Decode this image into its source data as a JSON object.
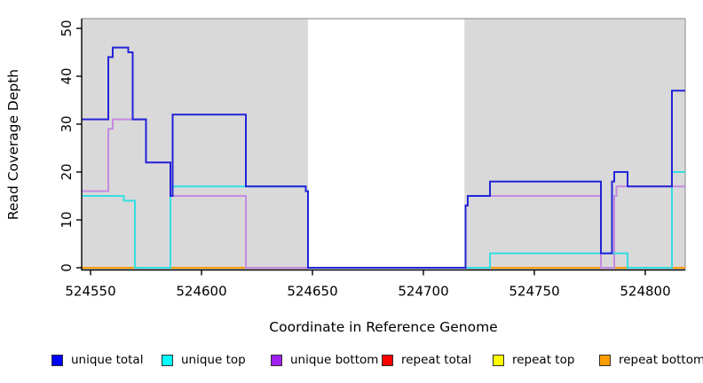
{
  "chart_data": {
    "type": "line",
    "step_style": "step-after",
    "title": "",
    "xlabel": "Coordinate in Reference Genome",
    "ylabel": "Read Coverage Depth",
    "xlim": [
      524546,
      524818
    ],
    "ylim": [
      0,
      52
    ],
    "x_ticks": [
      524550,
      524600,
      524650,
      524700,
      524750,
      524800
    ],
    "y_ticks": [
      0,
      10,
      20,
      30,
      40,
      50
    ],
    "grid": false,
    "legend_position": "bottom",
    "background": {
      "panel_color": "#d9d9d9",
      "gap_color": "#ffffff",
      "covered_regions": [
        [
          524546,
          524648
        ],
        [
          524718.5,
          524818
        ]
      ],
      "uncovered_gap_region": [
        524648,
        524718.5
      ],
      "border_color": "#999999",
      "axis_color": "#000000"
    },
    "series": [
      {
        "name": "unique total",
        "legend_color": "#0000ff",
        "line_color": "#2323d8",
        "points": [
          [
            524546,
            31
          ],
          [
            524558,
            44
          ],
          [
            524560,
            46
          ],
          [
            524567,
            45
          ],
          [
            524569,
            31
          ],
          [
            524575,
            22
          ],
          [
            524586,
            15
          ],
          [
            524587,
            32
          ],
          [
            524620,
            17
          ],
          [
            524647,
            16
          ],
          [
            524648,
            0
          ],
          [
            524719,
            13
          ],
          [
            524720,
            15
          ],
          [
            524730,
            18
          ],
          [
            524780,
            3
          ],
          [
            524785,
            18
          ],
          [
            524786,
            20
          ],
          [
            524792,
            17
          ],
          [
            524812,
            37
          ],
          [
            524818,
            37
          ]
        ]
      },
      {
        "name": "unique top",
        "legend_color": "#00ffff",
        "line_color": "#35dde2",
        "points": [
          [
            524546,
            15
          ],
          [
            524565,
            14
          ],
          [
            524570,
            0
          ],
          [
            524586,
            17
          ],
          [
            524647,
            16
          ],
          [
            524648,
            0
          ],
          [
            524730,
            3
          ],
          [
            524792,
            0
          ],
          [
            524812,
            20
          ],
          [
            524818,
            20
          ]
        ]
      },
      {
        "name": "unique bottom",
        "legend_color": "#a020f0",
        "line_color": "#c48ae0",
        "points": [
          [
            524546,
            16
          ],
          [
            524558,
            29
          ],
          [
            524560,
            31
          ],
          [
            524575,
            22
          ],
          [
            524586,
            15
          ],
          [
            524620,
            0
          ],
          [
            524719,
            13
          ],
          [
            524720,
            15
          ],
          [
            524780,
            0
          ],
          [
            524786,
            15
          ],
          [
            524787,
            17
          ],
          [
            524818,
            17
          ]
        ]
      },
      {
        "name": "repeat total",
        "legend_color": "#ff0000",
        "line_color": "#dd2222",
        "points": [
          [
            524546,
            0
          ],
          [
            524818,
            0
          ]
        ]
      },
      {
        "name": "repeat top",
        "legend_color": "#ffff00",
        "line_color": "#e8e822",
        "points": [
          [
            524546,
            0
          ],
          [
            524818,
            0
          ]
        ]
      },
      {
        "name": "repeat bottom",
        "legend_color": "#ff9d00",
        "line_color": "#ff9d00",
        "points": [
          [
            524546,
            0
          ],
          [
            524818,
            0
          ]
        ]
      }
    ],
    "draw_order": [
      3,
      4,
      5,
      2,
      1,
      0
    ]
  }
}
